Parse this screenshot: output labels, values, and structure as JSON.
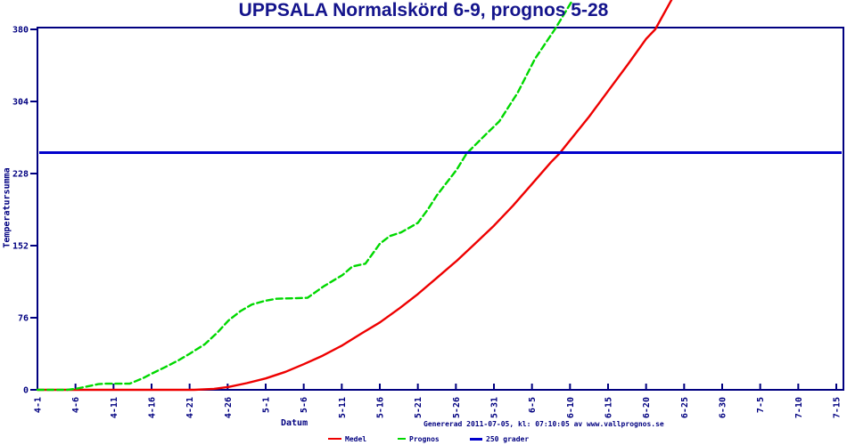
{
  "title": "UPPSALA Normalskörd 6-9, prognos 5-28",
  "footer": "Genererad 2011-07-05, kl: 07:10:05 av www.vallprognos.se",
  "colors": {
    "axis": "#000080",
    "title_text": "#14148c",
    "medel": "#ee0000",
    "prognos": "#00d800",
    "threshold": "#0000cc",
    "background": "#ffffff"
  },
  "legend": [
    {
      "label": "Medel",
      "color": "#ee0000",
      "style": "solid"
    },
    {
      "label": "Prognos",
      "color": "#00d800",
      "style": "dashed"
    },
    {
      "label": "250 grader",
      "color": "#0000cc",
      "style": "solid"
    }
  ],
  "chart_data": {
    "type": "line",
    "title": "UPPSALA Normalskörd 6-9, prognos 5-28",
    "xlabel": "Datum",
    "ylabel": "Temperatursumma",
    "ylim": [
      0,
      380
    ],
    "grid": false,
    "legend_position": "bottom",
    "y_ticks": [
      0,
      76,
      152,
      228,
      304,
      380
    ],
    "categories": [
      "4-1",
      "4-6",
      "4-11",
      "4-16",
      "4-21",
      "4-26",
      "5-1",
      "5-6",
      "5-11",
      "5-16",
      "5-21",
      "5-26",
      "5-31",
      "6-5",
      "6-10",
      "6-15",
      "6-20",
      "6-25",
      "6-30",
      "7-5",
      "7-10",
      "7-15"
    ],
    "tick_days": [
      0,
      5,
      10,
      15,
      20,
      25,
      30,
      35,
      40,
      45,
      50,
      55,
      60,
      65,
      70,
      75,
      80,
      85,
      90,
      95,
      100,
      105
    ],
    "series": [
      {
        "name": "Medel",
        "color": "#ee0000",
        "style": "solid",
        "values": [
          0,
          0,
          0,
          0,
          0,
          3,
          12,
          27,
          47,
          71,
          101,
          136,
          173,
          217,
          264,
          315,
          370,
          null,
          null,
          null,
          null,
          null
        ],
        "path_points": [
          [
            0,
            0
          ],
          [
            20.6,
            0
          ],
          [
            23.2,
            1
          ],
          [
            25.1,
            3
          ],
          [
            27.5,
            7
          ],
          [
            30,
            12
          ],
          [
            32.6,
            19
          ],
          [
            35,
            27
          ],
          [
            37.5,
            36
          ],
          [
            40.1,
            47
          ],
          [
            42.5,
            59
          ],
          [
            45,
            71
          ],
          [
            47.6,
            86
          ],
          [
            50,
            101
          ],
          [
            52.5,
            118
          ],
          [
            55.1,
            136
          ],
          [
            57.5,
            154
          ],
          [
            60,
            173
          ],
          [
            62.5,
            194
          ],
          [
            65,
            217
          ],
          [
            67.5,
            240
          ],
          [
            68.6,
            249
          ],
          [
            70.1,
            264
          ],
          [
            72.5,
            288
          ],
          [
            75,
            315
          ],
          [
            77.6,
            343
          ],
          [
            80,
            370
          ],
          [
            81.2,
            380
          ],
          [
            83.4,
            412
          ]
        ]
      },
      {
        "name": "Prognos",
        "color": "#00d800",
        "style": "dashed",
        "values": [
          0,
          1,
          6,
          17,
          38,
          73,
          94,
          97,
          121,
          154,
          176,
          232,
          273,
          349,
          null,
          null,
          null,
          null,
          null,
          null,
          null,
          null
        ],
        "path_points": [
          [
            0,
            0
          ],
          [
            3.9,
            0
          ],
          [
            5,
            1
          ],
          [
            6.2,
            3
          ],
          [
            7.4,
            5
          ],
          [
            8,
            6
          ],
          [
            8.9,
            6.5
          ],
          [
            12.1,
            6.5
          ],
          [
            13.8,
            12
          ],
          [
            15,
            17
          ],
          [
            16.8,
            24
          ],
          [
            18.5,
            31
          ],
          [
            20,
            38
          ],
          [
            22,
            48
          ],
          [
            23.6,
            60
          ],
          [
            25.1,
            73
          ],
          [
            26.7,
            83
          ],
          [
            28.2,
            90
          ],
          [
            30,
            94
          ],
          [
            31.4,
            96
          ],
          [
            35.5,
            97
          ],
          [
            37.6,
            109
          ],
          [
            40.1,
            121
          ],
          [
            41.4,
            130
          ],
          [
            43.1,
            133
          ],
          [
            45,
            154
          ],
          [
            46.3,
            162
          ],
          [
            47.8,
            166
          ],
          [
            50,
            176
          ],
          [
            51.3,
            190
          ],
          [
            52.5,
            205
          ],
          [
            55.1,
            232
          ],
          [
            56.4,
            249
          ],
          [
            58.9,
            269
          ],
          [
            60.7,
            283
          ],
          [
            63.1,
            313
          ],
          [
            65.4,
            349
          ],
          [
            68,
            380
          ],
          [
            70.2,
            409
          ]
        ]
      },
      {
        "name": "250 grader",
        "color": "#0000cc",
        "style": "hline",
        "value": 250
      }
    ]
  }
}
